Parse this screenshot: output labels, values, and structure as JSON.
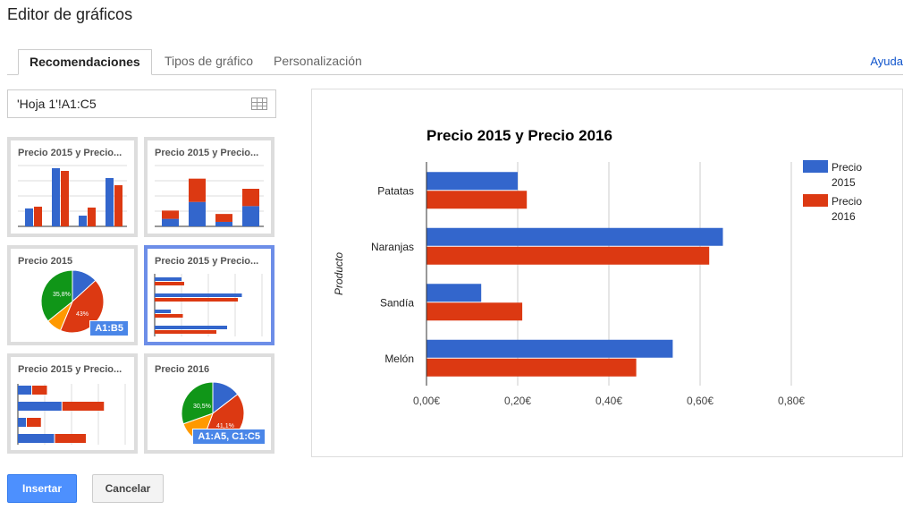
{
  "window": {
    "title": "Editor de gráficos"
  },
  "tabs": [
    {
      "label": "Recomendaciones",
      "active": true
    },
    {
      "label": "Tipos de gráfico"
    },
    {
      "label": "Personalización"
    }
  ],
  "help_link": "Ayuda",
  "range": {
    "value": "'Hoja 1'!A1:C5",
    "icon": "grid-icon"
  },
  "thumbnails": [
    {
      "title": "Precio 2015 y Precio...",
      "type": "column"
    },
    {
      "title": "Precio 2015 y Precio...",
      "type": "stacked-column"
    },
    {
      "title": "Precio 2015",
      "type": "pie",
      "labels": [
        "35,8%",
        "43%"
      ],
      "badge": "A1:B5"
    },
    {
      "title": "Precio 2015 y Precio...",
      "type": "bar",
      "selected": true
    },
    {
      "title": "Precio 2015 y Precio...",
      "type": "stacked-bar"
    },
    {
      "title": "Precio 2016",
      "type": "pie",
      "labels": [
        "30,5%",
        "41,1%"
      ],
      "badge": "A1:A5, C1:C5"
    }
  ],
  "colors": {
    "s2015": "#3366cc",
    "s2016": "#dc3912",
    "orange": "#ff9900",
    "green": "#109618",
    "selected": "#6d8ee8",
    "button": "#4d90fe"
  },
  "chart_data": {
    "type": "bar",
    "orientation": "horizontal",
    "title": "Precio 2015 y Precio 2016",
    "ylabel": "Producto",
    "xlabel": "",
    "categories": [
      "Patatas",
      "Naranjas",
      "Sandía",
      "Melón"
    ],
    "series": [
      {
        "name": "Precio 2015",
        "legend": [
          "Precio",
          "2015"
        ],
        "values": [
          0.2,
          0.65,
          0.12,
          0.54
        ]
      },
      {
        "name": "Precio 2016",
        "legend": [
          "Precio",
          "2016"
        ],
        "values": [
          0.22,
          0.62,
          0.21,
          0.46
        ]
      }
    ],
    "xlim": [
      0,
      0.8
    ],
    "ticks": [
      "0,00€",
      "0,20€",
      "0,40€",
      "0,60€",
      "0,80€"
    ],
    "grid": true,
    "legend": "right"
  },
  "buttons": {
    "insert": "Insertar",
    "cancel": "Cancelar"
  }
}
